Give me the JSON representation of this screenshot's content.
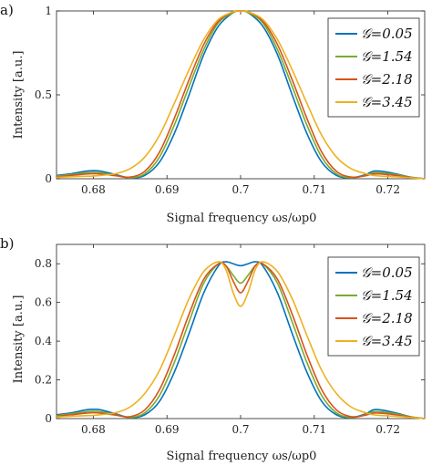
{
  "chart_data": [
    {
      "type": "line",
      "panel_label": "a)",
      "xlabel": "Signal frequency ωs/ωp0",
      "ylabel": "Intensity [a.u.]",
      "xlim": [
        0.675,
        0.725
      ],
      "ylim": [
        0,
        1
      ],
      "xticks": [
        0.68,
        0.69,
        0.7,
        0.71,
        0.72
      ],
      "xtick_labels": [
        "0.68",
        "0.69",
        "0.7",
        "0.71",
        "0.72"
      ],
      "yticks": [
        0,
        0.5,
        1
      ],
      "ytick_labels": [
        "0",
        "0.5",
        "1"
      ],
      "grid": false,
      "legend_position": "top-right",
      "x": [
        0.675,
        0.677,
        0.679,
        0.68,
        0.681,
        0.683,
        0.685,
        0.687,
        0.689,
        0.691,
        0.693,
        0.695,
        0.697,
        0.699,
        0.7,
        0.701,
        0.703,
        0.705,
        0.707,
        0.709,
        0.711,
        0.713,
        0.715,
        0.717,
        0.718,
        0.719,
        0.721,
        0.723,
        0.725
      ],
      "series": [
        {
          "name": "𝒢=0.05",
          "color": "#0072bd",
          "values": [
            0.02,
            0.03,
            0.045,
            0.048,
            0.045,
            0.025,
            0.005,
            0.02,
            0.1,
            0.27,
            0.5,
            0.74,
            0.91,
            0.99,
            1.0,
            0.99,
            0.91,
            0.74,
            0.5,
            0.27,
            0.1,
            0.02,
            0.005,
            0.025,
            0.045,
            0.045,
            0.03,
            0.01,
            0.0
          ]
        },
        {
          "name": "𝒢=1.54",
          "color": "#77ac30",
          "values": [
            0.015,
            0.025,
            0.035,
            0.038,
            0.035,
            0.02,
            0.006,
            0.03,
            0.13,
            0.32,
            0.55,
            0.77,
            0.93,
            0.99,
            1.0,
            0.99,
            0.93,
            0.77,
            0.55,
            0.32,
            0.13,
            0.03,
            0.006,
            0.02,
            0.035,
            0.035,
            0.025,
            0.01,
            0.0
          ]
        },
        {
          "name": "𝒢=2.18",
          "color": "#d95319",
          "values": [
            0.012,
            0.02,
            0.028,
            0.03,
            0.028,
            0.018,
            0.01,
            0.045,
            0.16,
            0.36,
            0.59,
            0.8,
            0.94,
            0.995,
            1.0,
            0.995,
            0.94,
            0.8,
            0.59,
            0.36,
            0.16,
            0.045,
            0.01,
            0.018,
            0.028,
            0.028,
            0.02,
            0.008,
            0.0
          ]
        },
        {
          "name": "𝒢=3.45",
          "color": "#edb120",
          "values": [
            0.008,
            0.012,
            0.015,
            0.016,
            0.02,
            0.03,
            0.06,
            0.13,
            0.26,
            0.45,
            0.65,
            0.83,
            0.95,
            0.995,
            1.0,
            0.995,
            0.95,
            0.83,
            0.65,
            0.45,
            0.26,
            0.13,
            0.06,
            0.03,
            0.02,
            0.016,
            0.012,
            0.006,
            0.0
          ]
        }
      ]
    },
    {
      "type": "line",
      "panel_label": "b)",
      "xlabel": "Signal frequency ωs/ωp0",
      "ylabel": "Intensity [a.u.]",
      "xlim": [
        0.675,
        0.725
      ],
      "ylim": [
        0,
        0.9
      ],
      "xticks": [
        0.68,
        0.69,
        0.7,
        0.71,
        0.72
      ],
      "xtick_labels": [
        "0.68",
        "0.69",
        "0.7",
        "0.71",
        "0.72"
      ],
      "yticks": [
        0,
        0.2,
        0.4,
        0.6,
        0.8
      ],
      "ytick_labels": [
        "0",
        "0.2",
        "0.4",
        "0.6",
        "0.8"
      ],
      "grid": false,
      "legend_position": "top-right",
      "x": [
        0.675,
        0.677,
        0.679,
        0.68,
        0.681,
        0.683,
        0.685,
        0.687,
        0.689,
        0.691,
        0.693,
        0.695,
        0.697,
        0.698,
        0.699,
        0.7,
        0.701,
        0.702,
        0.703,
        0.705,
        0.707,
        0.709,
        0.711,
        0.713,
        0.715,
        0.717,
        0.718,
        0.719,
        0.721,
        0.723,
        0.725
      ],
      "series": [
        {
          "name": "𝒢=0.05",
          "color": "#0072bd",
          "values": [
            0.02,
            0.03,
            0.045,
            0.048,
            0.045,
            0.025,
            0.005,
            0.02,
            0.09,
            0.24,
            0.44,
            0.65,
            0.79,
            0.81,
            0.8,
            0.79,
            0.8,
            0.81,
            0.79,
            0.65,
            0.44,
            0.24,
            0.09,
            0.02,
            0.005,
            0.025,
            0.045,
            0.045,
            0.03,
            0.01,
            0.0
          ]
        },
        {
          "name": "𝒢=1.54",
          "color": "#77ac30",
          "values": [
            0.015,
            0.025,
            0.035,
            0.038,
            0.035,
            0.02,
            0.006,
            0.03,
            0.12,
            0.29,
            0.5,
            0.7,
            0.8,
            0.79,
            0.74,
            0.7,
            0.74,
            0.79,
            0.8,
            0.7,
            0.5,
            0.29,
            0.12,
            0.03,
            0.006,
            0.02,
            0.035,
            0.035,
            0.025,
            0.01,
            0.0
          ]
        },
        {
          "name": "𝒢=2.18",
          "color": "#d95319",
          "values": [
            0.012,
            0.02,
            0.028,
            0.03,
            0.028,
            0.018,
            0.01,
            0.045,
            0.15,
            0.33,
            0.54,
            0.72,
            0.8,
            0.79,
            0.71,
            0.65,
            0.71,
            0.79,
            0.8,
            0.72,
            0.54,
            0.33,
            0.15,
            0.045,
            0.01,
            0.018,
            0.028,
            0.028,
            0.02,
            0.008,
            0.0
          ]
        },
        {
          "name": "𝒢=3.45",
          "color": "#edb120",
          "values": [
            0.008,
            0.012,
            0.015,
            0.016,
            0.02,
            0.03,
            0.06,
            0.13,
            0.25,
            0.43,
            0.62,
            0.76,
            0.81,
            0.77,
            0.65,
            0.58,
            0.65,
            0.77,
            0.81,
            0.76,
            0.62,
            0.43,
            0.25,
            0.13,
            0.06,
            0.03,
            0.02,
            0.016,
            0.012,
            0.006,
            0.0
          ]
        }
      ]
    }
  ]
}
